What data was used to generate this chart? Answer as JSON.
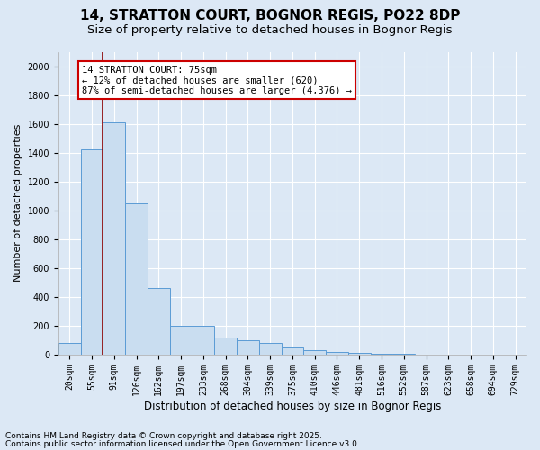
{
  "title": "14, STRATTON COURT, BOGNOR REGIS, PO22 8DP",
  "subtitle": "Size of property relative to detached houses in Bognor Regis",
  "xlabel": "Distribution of detached houses by size in Bognor Regis",
  "ylabel": "Number of detached properties",
  "categories": [
    "20sqm",
    "55sqm",
    "91sqm",
    "126sqm",
    "162sqm",
    "197sqm",
    "233sqm",
    "268sqm",
    "304sqm",
    "339sqm",
    "375sqm",
    "410sqm",
    "446sqm",
    "481sqm",
    "516sqm",
    "552sqm",
    "587sqm",
    "623sqm",
    "658sqm",
    "694sqm",
    "729sqm"
  ],
  "values": [
    80,
    1420,
    1610,
    1050,
    460,
    200,
    200,
    120,
    100,
    80,
    50,
    30,
    20,
    10,
    5,
    3,
    2,
    1,
    1,
    0,
    0
  ],
  "bar_color": "#c9ddf0",
  "bar_edge_color": "#5b9bd5",
  "red_line_x": 1.5,
  "annotation_text": "14 STRATTON COURT: 75sqm\n← 12% of detached houses are smaller (620)\n87% of semi-detached houses are larger (4,376) →",
  "annotation_box_color": "#ffffff",
  "annotation_box_edge": "#cc0000",
  "ylim": [
    0,
    2100
  ],
  "yticks": [
    0,
    200,
    400,
    600,
    800,
    1000,
    1200,
    1400,
    1600,
    1800,
    2000
  ],
  "footer1": "Contains HM Land Registry data © Crown copyright and database right 2025.",
  "footer2": "Contains public sector information licensed under the Open Government Licence v3.0.",
  "background_color": "#dce8f5",
  "plot_background": "#dce8f5",
  "title_fontsize": 11,
  "subtitle_fontsize": 9.5,
  "tick_fontsize": 7,
  "ylabel_fontsize": 8,
  "xlabel_fontsize": 8.5,
  "footer_fontsize": 6.5,
  "annotation_fontsize": 7.5
}
